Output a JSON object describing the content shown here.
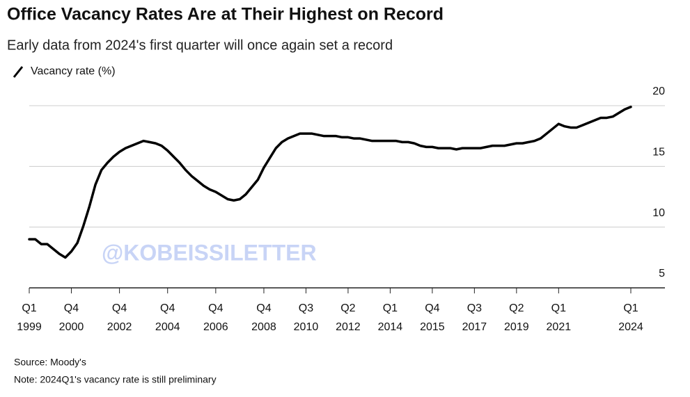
{
  "chart_data": {
    "type": "line",
    "title": "Office Vacancy Rates Are at Their Highest on Record",
    "subtitle": "Early data from 2024's first quarter will once again set a record",
    "source": "Source: Moody's",
    "note": "Note: 2024Q1's vacancy rate is still preliminary",
    "annotation": "@KOBEISSILETTER",
    "x": [
      1999.0,
      1999.25,
      1999.5,
      1999.75,
      2000.0,
      2000.25,
      2000.5,
      2000.75,
      2001.0,
      2001.25,
      2001.5,
      2001.75,
      2002.0,
      2002.25,
      2002.5,
      2002.75,
      2003.0,
      2003.25,
      2003.5,
      2003.75,
      2004.0,
      2004.25,
      2004.5,
      2004.75,
      2005.0,
      2005.25,
      2005.5,
      2005.75,
      2006.0,
      2006.25,
      2006.5,
      2006.75,
      2007.0,
      2007.25,
      2007.5,
      2007.75,
      2008.0,
      2008.25,
      2008.5,
      2008.75,
      2009.0,
      2009.25,
      2009.5,
      2009.75,
      2010.0,
      2010.25,
      2010.5,
      2010.75,
      2011.0,
      2011.25,
      2011.5,
      2011.75,
      2012.0,
      2012.25,
      2012.5,
      2012.75,
      2013.0,
      2013.25,
      2013.5,
      2013.75,
      2014.0,
      2014.25,
      2014.5,
      2014.75,
      2015.0,
      2015.25,
      2015.5,
      2015.75,
      2016.0,
      2016.25,
      2016.5,
      2016.75,
      2017.0,
      2017.25,
      2017.5,
      2017.75,
      2018.0,
      2018.25,
      2018.5,
      2018.75,
      2019.0,
      2019.25,
      2019.5,
      2019.75,
      2020.0,
      2020.25,
      2020.5,
      2020.75,
      2021.0,
      2021.25,
      2021.5,
      2021.75,
      2022.0,
      2022.25,
      2022.5,
      2022.75,
      2023.0,
      2023.25,
      2023.5,
      2023.75,
      2024.0
    ],
    "series": [
      {
        "name": "Vacancy rate (%)",
        "color": "#000000",
        "values": [
          9.0,
          9.0,
          8.6,
          8.6,
          8.2,
          7.8,
          7.5,
          8.0,
          8.7,
          10.1,
          11.7,
          13.5,
          14.7,
          15.3,
          15.8,
          16.2,
          16.5,
          16.7,
          16.9,
          17.1,
          17.0,
          16.9,
          16.7,
          16.3,
          15.8,
          15.3,
          14.7,
          14.2,
          13.8,
          13.4,
          13.1,
          12.9,
          12.6,
          12.3,
          12.2,
          12.3,
          12.7,
          13.3,
          13.9,
          14.9,
          15.7,
          16.5,
          17.0,
          17.3,
          17.5,
          17.7,
          17.7,
          17.7,
          17.6,
          17.5,
          17.5,
          17.5,
          17.4,
          17.4,
          17.3,
          17.3,
          17.2,
          17.1,
          17.1,
          17.1,
          17.1,
          17.1,
          17.0,
          17.0,
          16.9,
          16.7,
          16.6,
          16.6,
          16.5,
          16.5,
          16.5,
          16.4,
          16.5,
          16.5,
          16.5,
          16.5,
          16.6,
          16.7,
          16.7,
          16.7,
          16.8,
          16.9,
          16.9,
          17.0,
          17.1,
          17.3,
          17.7,
          18.1,
          18.5,
          18.3,
          18.2,
          18.2,
          18.4,
          18.6,
          18.8,
          19.0,
          19.0,
          19.1,
          19.4,
          19.7,
          19.9
        ]
      }
    ],
    "xlim": [
      1999.0,
      2024.0
    ],
    "xticks": [
      {
        "value": 1999.0,
        "label": "Q1\n1999"
      },
      {
        "value": 2000.75,
        "label": "Q4\n2000"
      },
      {
        "value": 2002.75,
        "label": "Q4\n2002"
      },
      {
        "value": 2004.75,
        "label": "Q4\n2004"
      },
      {
        "value": 2006.75,
        "label": "Q4\n2006"
      },
      {
        "value": 2008.75,
        "label": "Q4\n2008"
      },
      {
        "value": 2010.5,
        "label": "Q3\n2010"
      },
      {
        "value": 2012.25,
        "label": "Q2\n2012"
      },
      {
        "value": 2014.0,
        "label": "Q1\n2014"
      },
      {
        "value": 2015.75,
        "label": "Q4\n2015"
      },
      {
        "value": 2017.5,
        "label": "Q3\n2017"
      },
      {
        "value": 2019.25,
        "label": "Q2\n2019"
      },
      {
        "value": 2021.0,
        "label": "Q1\n2021"
      },
      {
        "value": 2024.0,
        "label": "Q1\n2024"
      }
    ],
    "ylim": [
      5,
      20
    ],
    "yticks": [
      5,
      10,
      15,
      20
    ],
    "grid": true
  }
}
